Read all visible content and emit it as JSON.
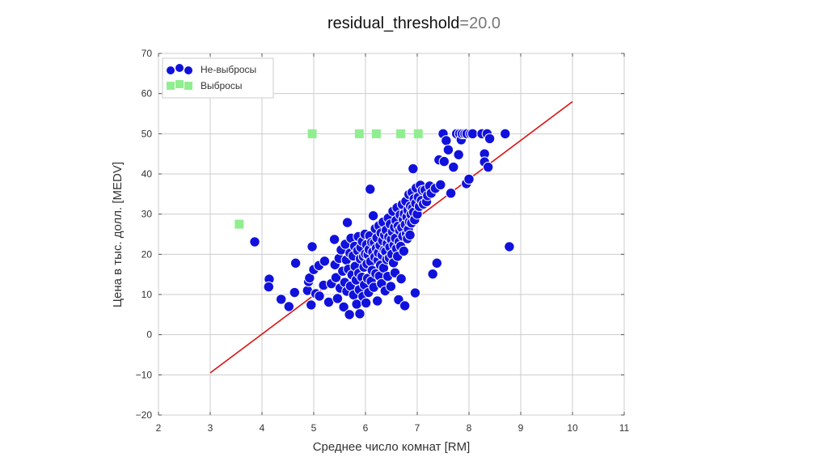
{
  "title": {
    "key": "residual_threshold",
    "sep": "=",
    "value": "20.0"
  },
  "chart_data": {
    "type": "scatter",
    "title": "residual_threshold=20.0",
    "xlabel": "Среднее число комнат [RM]",
    "ylabel": "Цена в тыс. долл. [MEDV]",
    "xlim": [
      2,
      11
    ],
    "ylim": [
      -20,
      70
    ],
    "xticks": [
      "2",
      "3",
      "4",
      "5",
      "6",
      "7",
      "8",
      "9",
      "10",
      "11"
    ],
    "yticks": [
      "−20",
      "−10",
      "0",
      "10",
      "20",
      "30",
      "40",
      "50",
      "60",
      "70"
    ],
    "grid": true,
    "legend_position": "top-left",
    "colors": {
      "inliers": "#1111dd",
      "outliers": "#90ee90",
      "fit_line": "#dd1111"
    },
    "series": [
      {
        "name": "Не-выбросы",
        "marker": "circle",
        "points": [
          [
            3.86,
            23.1
          ],
          [
            4.14,
            13.8
          ],
          [
            4.13,
            11.9
          ],
          [
            4.37,
            8.8
          ],
          [
            4.52,
            7.0
          ],
          [
            4.65,
            17.8
          ],
          [
            4.63,
            10.5
          ],
          [
            4.88,
            11.0
          ],
          [
            4.9,
            13.2
          ],
          [
            4.97,
            21.9
          ],
          [
            4.92,
            14.1
          ],
          [
            4.95,
            7.4
          ],
          [
            5.0,
            16.2
          ],
          [
            5.04,
            10.2
          ],
          [
            5.1,
            17.2
          ],
          [
            5.11,
            9.6
          ],
          [
            5.19,
            12.3
          ],
          [
            5.21,
            18.3
          ],
          [
            5.29,
            8.1
          ],
          [
            5.34,
            12.7
          ],
          [
            5.4,
            23.7
          ],
          [
            5.41,
            17.4
          ],
          [
            5.43,
            14.2
          ],
          [
            5.46,
            9.0
          ],
          [
            5.49,
            19.0
          ],
          [
            5.51,
            11.6
          ],
          [
            5.53,
            21.1
          ],
          [
            5.56,
            15.8
          ],
          [
            5.58,
            6.9
          ],
          [
            5.6,
            13.0
          ],
          [
            5.61,
            22.5
          ],
          [
            5.63,
            18.6
          ],
          [
            5.64,
            10.8
          ],
          [
            5.65,
            27.9
          ],
          [
            5.67,
            16.3
          ],
          [
            5.69,
            5.0
          ],
          [
            5.7,
            20.3
          ],
          [
            5.71,
            12.1
          ],
          [
            5.72,
            24.0
          ],
          [
            5.74,
            14.9
          ],
          [
            5.76,
            19.6
          ],
          [
            5.77,
            9.9
          ],
          [
            5.79,
            22.0
          ],
          [
            5.8,
            17.0
          ],
          [
            5.82,
            13.6
          ],
          [
            5.83,
            7.6
          ],
          [
            5.85,
            20.9
          ],
          [
            5.86,
            24.4
          ],
          [
            5.87,
            15.3
          ],
          [
            5.88,
            11.2
          ],
          [
            5.89,
            5.2
          ],
          [
            5.9,
            18.9
          ],
          [
            5.91,
            21.7
          ],
          [
            5.93,
            14.3
          ],
          [
            5.94,
            23.2
          ],
          [
            5.95,
            9.5
          ],
          [
            5.96,
            19.4
          ],
          [
            5.97,
            16.8
          ],
          [
            5.98,
            12.4
          ],
          [
            5.99,
            25.0
          ],
          [
            6.0,
            20.1
          ],
          [
            6.01,
            7.9
          ],
          [
            6.02,
            22.4
          ],
          [
            6.03,
            17.6
          ],
          [
            6.04,
            14.0
          ],
          [
            6.05,
            19.9
          ],
          [
            6.06,
            10.5
          ],
          [
            6.07,
            21.2
          ],
          [
            6.08,
            24.6
          ],
          [
            6.09,
            36.2
          ],
          [
            6.1,
            18.2
          ],
          [
            6.11,
            13.3
          ],
          [
            6.12,
            23.0
          ],
          [
            6.13,
            16.0
          ],
          [
            6.14,
            20.6
          ],
          [
            6.15,
            29.6
          ],
          [
            6.16,
            11.8
          ],
          [
            6.17,
            22.9
          ],
          [
            6.18,
            19.3
          ],
          [
            6.19,
            26.4
          ],
          [
            6.2,
            15.2
          ],
          [
            6.21,
            21.5
          ],
          [
            6.22,
            24.1
          ],
          [
            6.23,
            8.4
          ],
          [
            6.24,
            18.5
          ],
          [
            6.25,
            20.4
          ],
          [
            6.26,
            27.1
          ],
          [
            6.27,
            14.6
          ],
          [
            6.28,
            22.2
          ],
          [
            6.29,
            17.3
          ],
          [
            6.3,
            25.3
          ],
          [
            6.31,
            12.7
          ],
          [
            6.32,
            19.8
          ],
          [
            6.33,
            23.4
          ],
          [
            6.34,
            28.0
          ],
          [
            6.35,
            16.6
          ],
          [
            6.36,
            21.0
          ],
          [
            6.37,
            24.8
          ],
          [
            6.38,
            10.9
          ],
          [
            6.39,
            20.7
          ],
          [
            6.4,
            26.0
          ],
          [
            6.41,
            18.7
          ],
          [
            6.42,
            22.7
          ],
          [
            6.43,
            14.5
          ],
          [
            6.44,
            29.0
          ],
          [
            6.45,
            24.3
          ],
          [
            6.46,
            19.1
          ],
          [
            6.47,
            21.8
          ],
          [
            6.48,
            27.5
          ],
          [
            6.49,
            12.0
          ],
          [
            6.5,
            23.7
          ],
          [
            6.51,
            20.0
          ],
          [
            6.52,
            25.6
          ],
          [
            6.53,
            30.7
          ],
          [
            6.54,
            17.9
          ],
          [
            6.55,
            22.3
          ],
          [
            6.56,
            26.7
          ],
          [
            6.57,
            15.4
          ],
          [
            6.58,
            24.0
          ],
          [
            6.59,
            28.4
          ],
          [
            6.6,
            21.4
          ],
          [
            6.61,
            31.6
          ],
          [
            6.62,
            19.5
          ],
          [
            6.63,
            27.0
          ],
          [
            6.64,
            8.7
          ],
          [
            6.65,
            23.1
          ],
          [
            6.66,
            25.9
          ],
          [
            6.67,
            29.8
          ],
          [
            6.68,
            22.0
          ],
          [
            6.69,
            13.9
          ],
          [
            6.7,
            26.6
          ],
          [
            6.71,
            32.4
          ],
          [
            6.72,
            24.5
          ],
          [
            6.73,
            28.7
          ],
          [
            6.74,
            20.8
          ],
          [
            6.75,
            30.1
          ],
          [
            6.76,
            7.2
          ],
          [
            6.77,
            27.4
          ],
          [
            6.78,
            33.2
          ],
          [
            6.79,
            25.1
          ],
          [
            6.8,
            29.3
          ],
          [
            6.81,
            23.9
          ],
          [
            6.82,
            31.0
          ],
          [
            6.83,
            26.2
          ],
          [
            6.84,
            34.9
          ],
          [
            6.85,
            28.1
          ],
          [
            6.86,
            24.8
          ],
          [
            6.87,
            32.0
          ],
          [
            6.88,
            29.9
          ],
          [
            6.89,
            27.8
          ],
          [
            6.9,
            35.4
          ],
          [
            6.91,
            31.5
          ],
          [
            6.92,
            41.3
          ],
          [
            6.93,
            30.5
          ],
          [
            6.94,
            33.8
          ],
          [
            6.95,
            28.6
          ],
          [
            6.96,
            10.4
          ],
          [
            6.97,
            32.7
          ],
          [
            6.98,
            36.5
          ],
          [
            7.0,
            30.0
          ],
          [
            7.02,
            34.2
          ],
          [
            7.04,
            31.9
          ],
          [
            7.06,
            37.2
          ],
          [
            7.08,
            33.4
          ],
          [
            7.1,
            35.9
          ],
          [
            7.12,
            32.5
          ],
          [
            7.15,
            36.0
          ],
          [
            7.18,
            33.1
          ],
          [
            7.2,
            34.6
          ],
          [
            7.24,
            37.0
          ],
          [
            7.27,
            35.2
          ],
          [
            7.3,
            15.1
          ],
          [
            7.35,
            36.4
          ],
          [
            7.38,
            17.8
          ],
          [
            7.42,
            43.5
          ],
          [
            7.45,
            37.3
          ],
          [
            7.5,
            50.0
          ],
          [
            7.52,
            43.1
          ],
          [
            7.56,
            48.3
          ],
          [
            7.6,
            46.0
          ],
          [
            7.65,
            35.2
          ],
          [
            7.7,
            41.7
          ],
          [
            7.76,
            50.0
          ],
          [
            7.8,
            44.8
          ],
          [
            7.82,
            50.0
          ],
          [
            7.85,
            48.5
          ],
          [
            7.87,
            50.0
          ],
          [
            7.92,
            50.0
          ],
          [
            7.95,
            37.6
          ],
          [
            7.96,
            50.0
          ],
          [
            8.0,
            38.7
          ],
          [
            8.03,
            50.0
          ],
          [
            8.07,
            50.0
          ],
          [
            8.25,
            50.0
          ],
          [
            8.3,
            45.0
          ],
          [
            8.3,
            43.0
          ],
          [
            8.35,
            50.0
          ],
          [
            8.37,
            41.7
          ],
          [
            8.4,
            48.8
          ],
          [
            8.7,
            50.0
          ],
          [
            8.78,
            21.9
          ]
        ]
      },
      {
        "name": "Выбросы",
        "marker": "square",
        "points": [
          [
            3.56,
            27.5
          ],
          [
            4.97,
            50.0
          ],
          [
            5.88,
            50.0
          ],
          [
            6.21,
            50.0
          ],
          [
            6.68,
            50.0
          ],
          [
            7.02,
            50.0
          ]
        ]
      }
    ],
    "fit_line": {
      "x": [
        3.0,
        10.0
      ],
      "y": [
        -9.5,
        58.0
      ]
    }
  }
}
